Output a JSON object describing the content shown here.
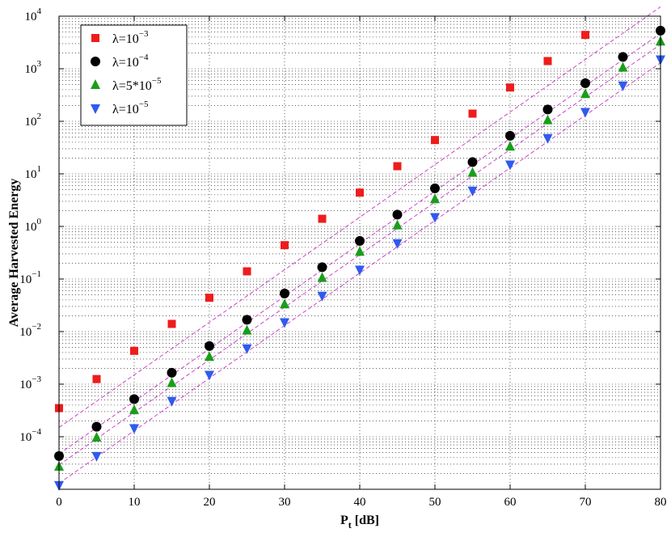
{
  "chart_data": {
    "type": "scatter",
    "title": "",
    "xlabel_main": "P",
    "xlabel_sub": "t",
    "xlabel_unit": " [dB]",
    "ylabel": "Average Harvested Energy",
    "xlim": [
      0,
      80
    ],
    "ylim": [
      1e-05,
      10000
    ],
    "yscale": "log",
    "grid": "dotted major and minor",
    "legend_position": "top-left",
    "x_ticks": [
      "0",
      "10",
      "20",
      "30",
      "40",
      "50",
      "60",
      "70",
      "80"
    ],
    "y_ticks": [
      {
        "base": "10",
        "exp": "-4"
      },
      {
        "base": "10",
        "exp": "-3"
      },
      {
        "base": "10",
        "exp": "-2"
      },
      {
        "base": "10",
        "exp": "-1"
      },
      {
        "base": "10",
        "exp": "0"
      },
      {
        "base": "10",
        "exp": "1"
      },
      {
        "base": "10",
        "exp": "2"
      },
      {
        "base": "10",
        "exp": "3"
      },
      {
        "base": "10",
        "exp": "4"
      }
    ],
    "fit_line_color": "#cc44cc",
    "series": [
      {
        "label_base": "λ=10",
        "label_exp": "−3",
        "marker": "square",
        "color": "#ee1c1c",
        "x": [
          0,
          5,
          10,
          15,
          20,
          25,
          30,
          35,
          40,
          45,
          50,
          55,
          60,
          65,
          70
        ],
        "y": [
          0.00035,
          0.00125,
          0.0043,
          0.014,
          0.044,
          0.14,
          0.44,
          1.4,
          4.4,
          14,
          44,
          140,
          440,
          1400,
          4400
        ]
      },
      {
        "label_base": "λ=10",
        "label_exp": "−4",
        "marker": "circle",
        "color": "#000000",
        "x": [
          0,
          5,
          10,
          15,
          20,
          25,
          30,
          35,
          40,
          45,
          50,
          55,
          60,
          65,
          70,
          75,
          80
        ],
        "y": [
          4.3e-05,
          0.000155,
          0.00052,
          0.00165,
          0.0053,
          0.0168,
          0.053,
          0.168,
          0.53,
          1.68,
          5.3,
          16.8,
          53,
          168,
          530,
          1680,
          5300
        ]
      },
      {
        "label_base": "λ=5*10",
        "label_exp": "−5",
        "marker": "triangle-up",
        "color": "#1a9e1a",
        "x": [
          0,
          5,
          10,
          15,
          20,
          25,
          30,
          35,
          40,
          45,
          50,
          55,
          60,
          65,
          70,
          75,
          80
        ],
        "y": [
          2.7e-05,
          9.6e-05,
          0.00032,
          0.00105,
          0.0033,
          0.0105,
          0.033,
          0.105,
          0.33,
          1.05,
          3.3,
          10.5,
          33,
          105,
          330,
          1050,
          3300
        ]
      },
      {
        "label_base": "λ=10",
        "label_exp": "−5",
        "marker": "triangle-down",
        "color": "#2f5bee",
        "x": [
          0,
          5,
          10,
          15,
          20,
          25,
          30,
          35,
          40,
          45,
          50,
          55,
          60,
          65,
          70,
          75,
          80
        ],
        "y": [
          1.2e-05,
          4.3e-05,
          0.000145,
          0.00048,
          0.0015,
          0.0048,
          0.015,
          0.048,
          0.15,
          0.48,
          1.5,
          4.8,
          15,
          48,
          150,
          480,
          1500
        ]
      }
    ],
    "fit_lines": [
      {
        "y0": 0.00015,
        "y80": 15000
      },
      {
        "y0": 4.7e-05,
        "y80": 4700
      },
      {
        "y0": 2.9e-05,
        "y80": 2900
      },
      {
        "y0": 1.3e-05,
        "y80": 1300
      }
    ]
  }
}
